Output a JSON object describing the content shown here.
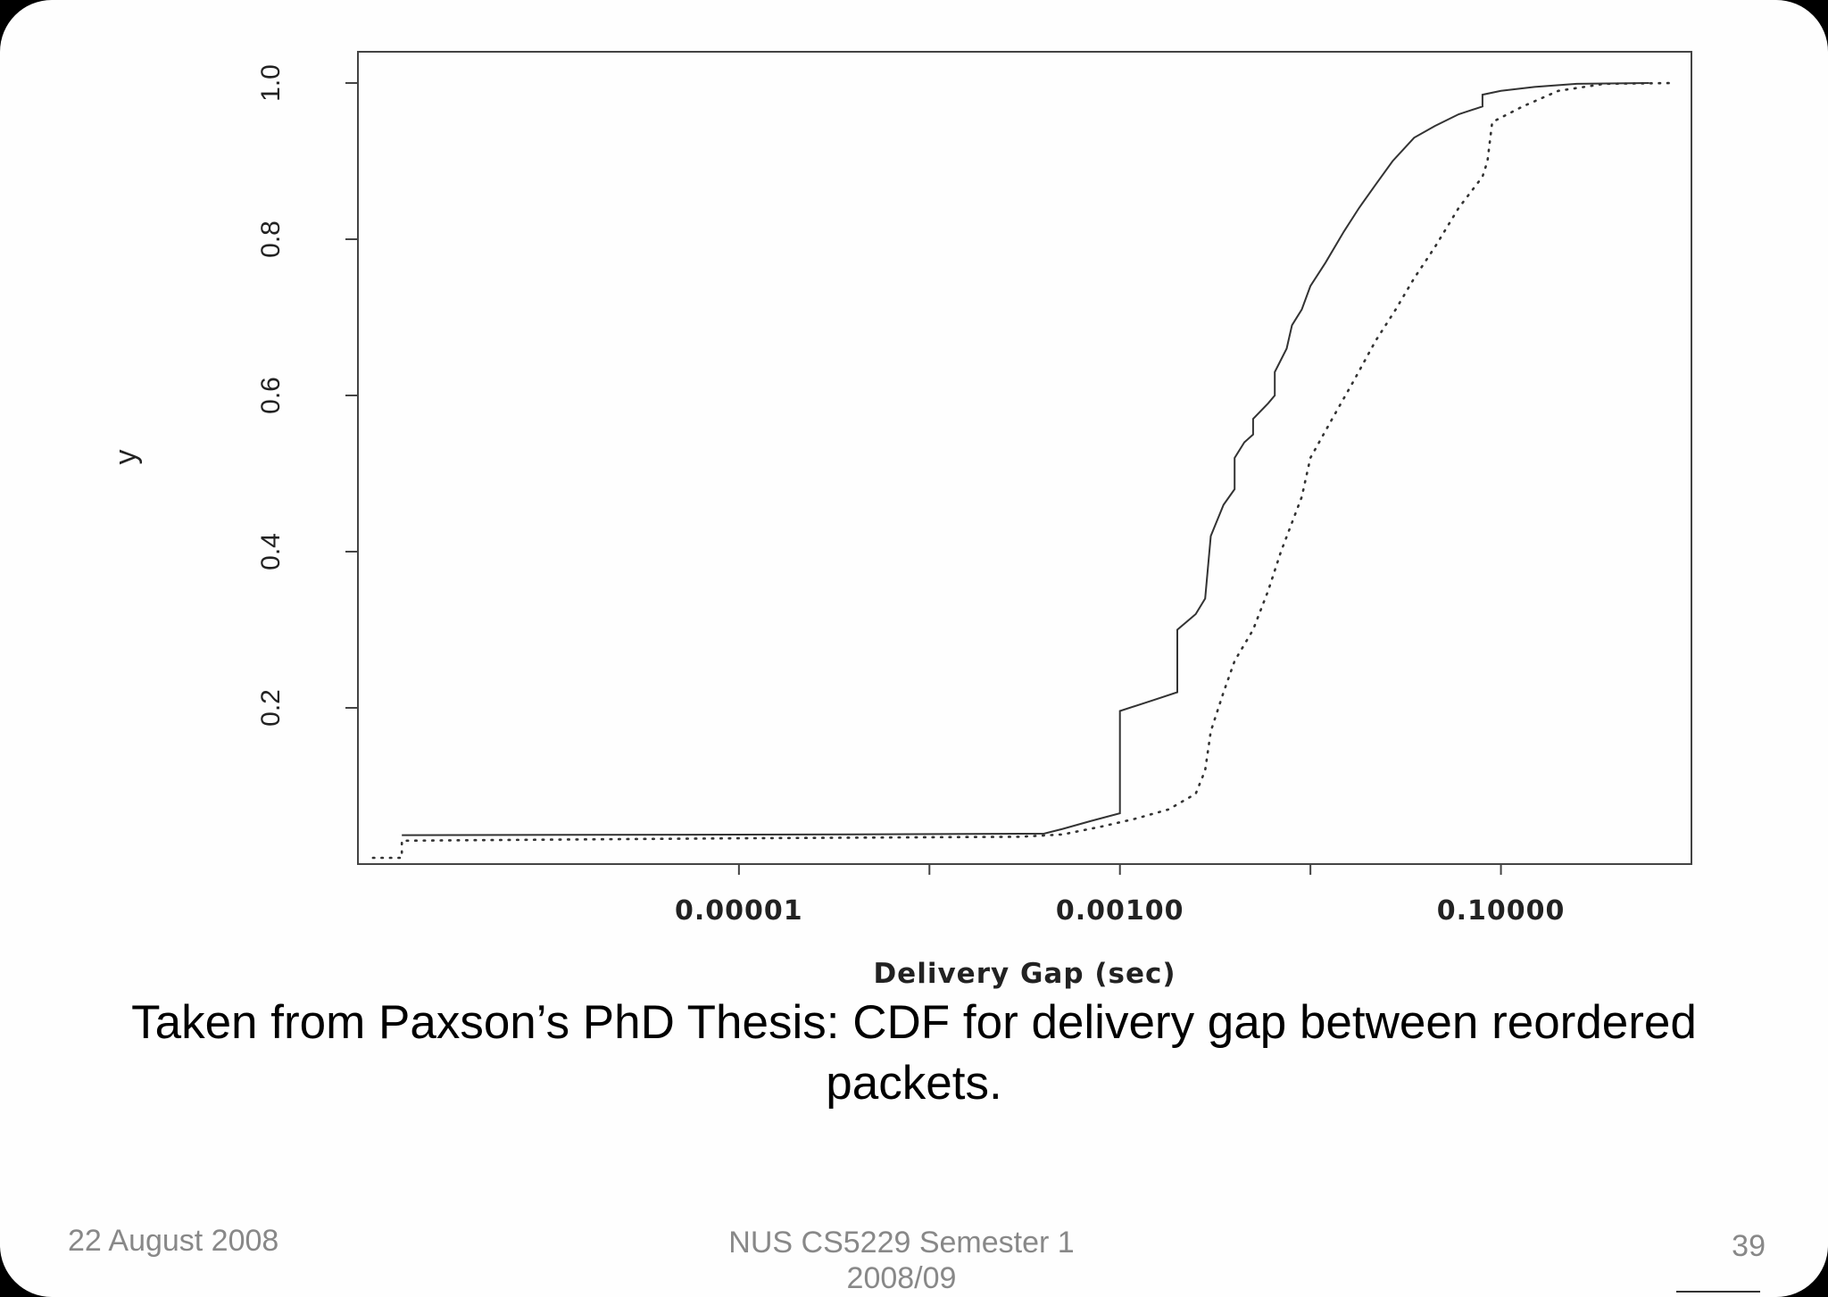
{
  "chart_data": {
    "type": "line",
    "xlabel": "Delivery Gap (sec)",
    "ylabel": "y",
    "x_scale": "log10",
    "xlim": [
      1e-07,
      1.0
    ],
    "ylim": [
      0.0,
      1.04
    ],
    "x_ticks": [
      1e-05,
      0.0001,
      0.001,
      0.01,
      0.1
    ],
    "x_tick_labels": [
      "0.00001",
      "",
      "0.00100",
      "",
      "0.10000"
    ],
    "y_ticks": [
      0.2,
      0.4,
      0.6,
      0.8,
      1.0
    ],
    "y_tick_labels": [
      "0.2",
      "0.4",
      "0.6",
      "0.8",
      "1.0"
    ],
    "grid": false,
    "series": [
      {
        "style": "solid",
        "points": [
          [
            1.7e-07,
            0.037
          ],
          [
            4e-05,
            0.038
          ],
          [
            0.0004,
            0.039
          ],
          [
            0.0005,
            0.045
          ],
          [
            0.0007,
            0.055
          ],
          [
            0.001,
            0.065
          ],
          [
            0.001,
            0.196
          ],
          [
            0.0015,
            0.21
          ],
          [
            0.002,
            0.22
          ],
          [
            0.002,
            0.3
          ],
          [
            0.0025,
            0.32
          ],
          [
            0.0028,
            0.34
          ],
          [
            0.003,
            0.42
          ],
          [
            0.0035,
            0.46
          ],
          [
            0.004,
            0.48
          ],
          [
            0.004,
            0.52
          ],
          [
            0.0045,
            0.54
          ],
          [
            0.005,
            0.55
          ],
          [
            0.005,
            0.57
          ],
          [
            0.006,
            0.59
          ],
          [
            0.0065,
            0.6
          ],
          [
            0.0065,
            0.63
          ],
          [
            0.0075,
            0.66
          ],
          [
            0.008,
            0.69
          ],
          [
            0.009,
            0.71
          ],
          [
            0.01,
            0.74
          ],
          [
            0.012,
            0.77
          ],
          [
            0.015,
            0.81
          ],
          [
            0.018,
            0.84
          ],
          [
            0.022,
            0.87
          ],
          [
            0.027,
            0.9
          ],
          [
            0.035,
            0.93
          ],
          [
            0.045,
            0.945
          ],
          [
            0.06,
            0.96
          ],
          [
            0.08,
            0.97
          ],
          [
            0.08,
            0.985
          ],
          [
            0.1,
            0.99
          ],
          [
            0.15,
            0.995
          ],
          [
            0.25,
            0.999
          ],
          [
            0.6,
            1.0
          ]
        ]
      },
      {
        "style": "dotted",
        "points": [
          [
            1.2e-07,
            0.008
          ],
          [
            1.7e-07,
            0.008
          ],
          [
            1.7e-07,
            0.03
          ],
          [
            1e-05,
            0.033
          ],
          [
            0.0003,
            0.035
          ],
          [
            0.0005,
            0.038
          ],
          [
            0.0008,
            0.048
          ],
          [
            0.0012,
            0.058
          ],
          [
            0.0018,
            0.07
          ],
          [
            0.0025,
            0.09
          ],
          [
            0.0028,
            0.12
          ],
          [
            0.003,
            0.17
          ],
          [
            0.0035,
            0.22
          ],
          [
            0.004,
            0.26
          ],
          [
            0.005,
            0.3
          ],
          [
            0.006,
            0.35
          ],
          [
            0.007,
            0.4
          ],
          [
            0.009,
            0.47
          ],
          [
            0.01,
            0.52
          ],
          [
            0.013,
            0.57
          ],
          [
            0.017,
            0.62
          ],
          [
            0.022,
            0.67
          ],
          [
            0.028,
            0.71
          ],
          [
            0.035,
            0.75
          ],
          [
            0.045,
            0.79
          ],
          [
            0.06,
            0.84
          ],
          [
            0.08,
            0.88
          ],
          [
            0.085,
            0.9
          ],
          [
            0.09,
            0.95
          ],
          [
            0.13,
            0.97
          ],
          [
            0.2,
            0.99
          ],
          [
            0.35,
            0.999
          ],
          [
            0.8,
            1.0
          ]
        ]
      }
    ]
  },
  "caption": "Taken from Paxson’s PhD Thesis: CDF for delivery gap between reordered packets.",
  "footer": {
    "date": "22 August 2008",
    "course_line1": "NUS CS5229 Semester 1",
    "course_line2": "2008/09",
    "page_number": "39"
  }
}
